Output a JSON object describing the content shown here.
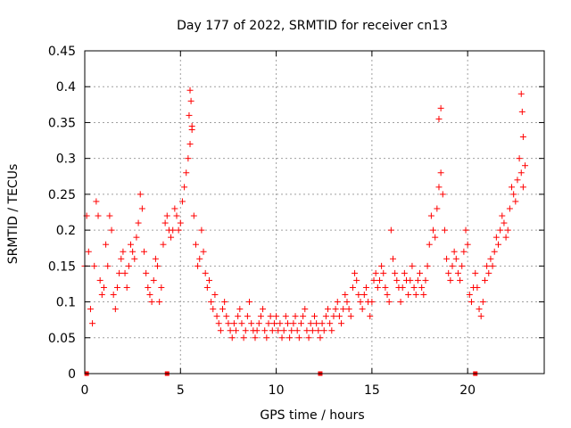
{
  "chart_data": {
    "type": "scatter",
    "title": "Day 177 of 2022, SRMTID for receiver cn13",
    "xlabel": "GPS time / hours",
    "ylabel": "SRMTID / TECUs",
    "xlim": [
      0,
      24
    ],
    "ylim": [
      0,
      0.45
    ],
    "xticks": [
      "0",
      "5",
      "10",
      "15",
      "20"
    ],
    "yticks": [
      "0",
      "0.05",
      "0.1",
      "0.15",
      "0.2",
      "0.25",
      "0.3",
      "0.35",
      "0.4",
      "0.45"
    ],
    "grid": true,
    "marker": "plus",
    "color": "#ff0000",
    "series": [
      {
        "name": "SRMTID (cn13)",
        "x": [
          0.0,
          0.1,
          0.2,
          0.3,
          0.4,
          0.5,
          0.6,
          0.7,
          0.8,
          0.9,
          1.0,
          1.1,
          1.2,
          1.3,
          1.4,
          1.5,
          1.6,
          1.7,
          1.8,
          1.9,
          2.0,
          2.1,
          2.2,
          2.3,
          2.4,
          2.5,
          2.6,
          2.7,
          2.8,
          2.9,
          3.0,
          3.1,
          3.2,
          3.3,
          3.4,
          3.5,
          3.6,
          3.7,
          3.8,
          3.9,
          4.0,
          4.1,
          4.2,
          4.3,
          4.4,
          4.5,
          4.6,
          4.7,
          4.8,
          4.9,
          5.0,
          5.1,
          5.2,
          5.3,
          5.4,
          5.5,
          5.6,
          5.7,
          5.8,
          5.9,
          6.0,
          6.1,
          6.2,
          6.3,
          6.4,
          6.5,
          6.6,
          6.7,
          6.8,
          6.9,
          7.0,
          7.1,
          7.2,
          7.3,
          7.4,
          7.5,
          7.6,
          7.7,
          7.8,
          7.9,
          8.0,
          8.1,
          8.2,
          8.3,
          8.4,
          8.5,
          8.6,
          8.7,
          8.8,
          8.9,
          9.0,
          9.1,
          9.2,
          9.3,
          9.4,
          9.5,
          9.6,
          9.7,
          9.8,
          9.9,
          10.0,
          10.1,
          10.2,
          10.3,
          10.4,
          10.5,
          10.6,
          10.7,
          10.8,
          10.9,
          11.0,
          11.1,
          11.2,
          11.3,
          11.4,
          11.5,
          11.6,
          11.7,
          11.8,
          11.9,
          12.0,
          12.1,
          12.2,
          12.3,
          12.4,
          12.5,
          12.6,
          12.7,
          12.8,
          12.9,
          13.0,
          13.1,
          13.2,
          13.3,
          13.4,
          13.5,
          13.6,
          13.7,
          13.8,
          13.9,
          14.0,
          14.1,
          14.2,
          14.3,
          14.4,
          14.5,
          14.6,
          14.7,
          14.8,
          14.9,
          15.0,
          15.1,
          15.2,
          15.3,
          15.4,
          15.5,
          15.6,
          15.7,
          15.8,
          15.9,
          16.0,
          16.1,
          16.2,
          16.3,
          16.4,
          16.5,
          16.6,
          16.7,
          16.8,
          16.9,
          17.0,
          17.1,
          17.2,
          17.3,
          17.4,
          17.5,
          17.6,
          17.7,
          17.8,
          17.9,
          18.0,
          18.1,
          18.2,
          18.3,
          18.4,
          18.5,
          18.6,
          18.7,
          18.8,
          18.9,
          19.0,
          19.1,
          19.2,
          19.3,
          19.4,
          19.5,
          19.6,
          19.7,
          19.8,
          19.9,
          20.0,
          20.1,
          20.2,
          20.3,
          20.4,
          20.5,
          20.6,
          20.7,
          20.8,
          20.9,
          21.0,
          21.1,
          21.2,
          21.3,
          21.4,
          21.5,
          21.6,
          21.7,
          21.8,
          21.9,
          22.0,
          22.1,
          22.2,
          22.3,
          22.4,
          22.5,
          22.6,
          22.7,
          22.8,
          22.9,
          23.0,
          5.5,
          5.55,
          5.45,
          5.6,
          18.6,
          18.5,
          22.8,
          22.9,
          22.85
        ],
        "y": [
          0.15,
          0.22,
          0.17,
          0.09,
          0.07,
          0.15,
          0.24,
          0.22,
          0.13,
          0.11,
          0.12,
          0.18,
          0.15,
          0.22,
          0.2,
          0.11,
          0.09,
          0.12,
          0.14,
          0.16,
          0.17,
          0.14,
          0.12,
          0.15,
          0.18,
          0.17,
          0.16,
          0.19,
          0.21,
          0.25,
          0.23,
          0.17,
          0.14,
          0.12,
          0.11,
          0.1,
          0.13,
          0.16,
          0.15,
          0.1,
          0.12,
          0.18,
          0.21,
          0.22,
          0.2,
          0.19,
          0.2,
          0.23,
          0.22,
          0.2,
          0.21,
          0.24,
          0.26,
          0.28,
          0.3,
          0.32,
          0.34,
          0.22,
          0.18,
          0.15,
          0.16,
          0.2,
          0.17,
          0.14,
          0.12,
          0.13,
          0.1,
          0.09,
          0.11,
          0.08,
          0.07,
          0.06,
          0.09,
          0.1,
          0.08,
          0.07,
          0.06,
          0.05,
          0.07,
          0.06,
          0.08,
          0.09,
          0.07,
          0.05,
          0.06,
          0.08,
          0.1,
          0.07,
          0.06,
          0.05,
          0.06,
          0.07,
          0.08,
          0.09,
          0.06,
          0.05,
          0.07,
          0.08,
          0.06,
          0.07,
          0.08,
          0.06,
          0.07,
          0.05,
          0.06,
          0.08,
          0.07,
          0.05,
          0.06,
          0.07,
          0.08,
          0.06,
          0.05,
          0.07,
          0.08,
          0.09,
          0.06,
          0.05,
          0.07,
          0.06,
          0.08,
          0.07,
          0.06,
          0.05,
          0.07,
          0.06,
          0.08,
          0.09,
          0.07,
          0.06,
          0.08,
          0.09,
          0.1,
          0.08,
          0.07,
          0.09,
          0.11,
          0.1,
          0.09,
          0.08,
          0.12,
          0.14,
          0.13,
          0.11,
          0.1,
          0.09,
          0.11,
          0.12,
          0.1,
          0.08,
          0.1,
          0.13,
          0.14,
          0.12,
          0.13,
          0.15,
          0.14,
          0.12,
          0.11,
          0.1,
          0.2,
          0.16,
          0.14,
          0.13,
          0.12,
          0.1,
          0.12,
          0.14,
          0.13,
          0.11,
          0.13,
          0.15,
          0.12,
          0.11,
          0.13,
          0.14,
          0.12,
          0.11,
          0.13,
          0.15,
          0.18,
          0.22,
          0.2,
          0.19,
          0.23,
          0.26,
          0.28,
          0.25,
          0.2,
          0.16,
          0.14,
          0.13,
          0.15,
          0.17,
          0.16,
          0.14,
          0.13,
          0.15,
          0.17,
          0.2,
          0.18,
          0.11,
          0.1,
          0.12,
          0.14,
          0.12,
          0.09,
          0.08,
          0.1,
          0.13,
          0.15,
          0.14,
          0.16,
          0.15,
          0.17,
          0.19,
          0.18,
          0.2,
          0.22,
          0.21,
          0.19,
          0.2,
          0.23,
          0.26,
          0.25,
          0.24,
          0.27,
          0.3,
          0.28,
          0.26,
          0.29,
          0.395,
          0.38,
          0.36,
          0.345,
          0.37,
          0.355,
          0.39,
          0.33,
          0.365
        ]
      }
    ],
    "markers_on_zero": [
      0.1,
      4.3,
      12.3,
      20.4
    ]
  }
}
